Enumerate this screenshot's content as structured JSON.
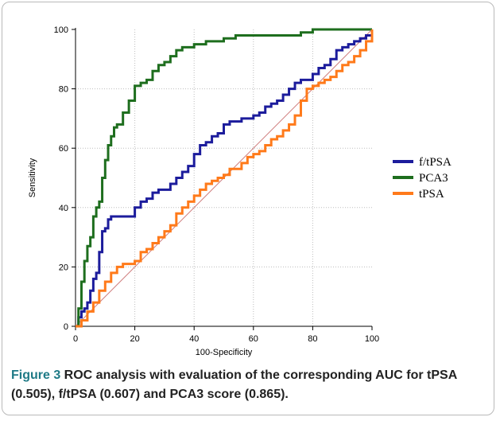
{
  "chart_data": {
    "type": "line",
    "title": "",
    "xlabel": "100-Specificity",
    "ylabel": "Sensitivity",
    "xlim": [
      0,
      100
    ],
    "ylim": [
      0,
      100
    ],
    "xticks": [
      "0",
      "20",
      "40",
      "60",
      "80",
      "100"
    ],
    "yticks": [
      "0",
      "20",
      "40",
      "60",
      "80",
      "100"
    ],
    "grid": true,
    "legend_position": "right",
    "diagonal_reference_line": true,
    "series": [
      {
        "name": "f/tPSA",
        "color": "#1c1c9c",
        "x": [
          0,
          1,
          2,
          3,
          4,
          5,
          6,
          7,
          8,
          9,
          10,
          11,
          12,
          13,
          14,
          15,
          16,
          18,
          20,
          22,
          24,
          26,
          28,
          30,
          32,
          34,
          36,
          38,
          40,
          42,
          44,
          46,
          48,
          50,
          52,
          54,
          56,
          58,
          60,
          62,
          64,
          66,
          68,
          70,
          72,
          74,
          76,
          78,
          80,
          82,
          84,
          86,
          88,
          90,
          92,
          94,
          96,
          98,
          100
        ],
        "y": [
          0,
          3,
          5,
          6,
          8,
          12,
          16,
          18,
          25,
          32,
          33,
          36,
          37,
          37,
          37,
          37,
          37,
          37,
          40,
          42,
          43,
          45,
          46,
          46,
          48,
          50,
          52,
          54,
          58,
          61,
          62,
          64,
          65,
          68,
          69,
          69,
          70,
          70,
          71,
          72,
          74,
          75,
          76,
          78,
          80,
          82,
          83,
          83,
          85,
          87,
          88,
          90,
          93,
          94,
          95,
          96,
          97,
          98,
          100
        ]
      },
      {
        "name": "PCA3",
        "color": "#1e6e1e",
        "x": [
          0,
          1,
          2,
          3,
          4,
          5,
          6,
          7,
          8,
          9,
          10,
          11,
          12,
          13,
          14,
          16,
          18,
          20,
          22,
          24,
          26,
          28,
          30,
          32,
          34,
          36,
          38,
          40,
          42,
          44,
          46,
          48,
          50,
          52,
          54,
          56,
          58,
          60,
          62,
          64,
          66,
          68,
          70,
          72,
          74,
          76,
          78,
          80,
          82,
          84,
          86,
          88,
          90,
          92,
          94,
          96,
          98,
          100
        ],
        "y": [
          0,
          6,
          15,
          22,
          27,
          30,
          37,
          40,
          42,
          50,
          56,
          61,
          64,
          67,
          68,
          72,
          76,
          81,
          82,
          83,
          86,
          88,
          89,
          91,
          93,
          94,
          94,
          95,
          95,
          96,
          96,
          96,
          97,
          97,
          98,
          98,
          98,
          98,
          98,
          98,
          98,
          98,
          98,
          98,
          98,
          99,
          99,
          100,
          100,
          100,
          100,
          100,
          100,
          100,
          100,
          100,
          100,
          100
        ]
      },
      {
        "name": "tPSA",
        "color": "#ff7a1a",
        "x": [
          0,
          2,
          4,
          6,
          8,
          10,
          12,
          14,
          16,
          18,
          20,
          22,
          24,
          26,
          28,
          30,
          32,
          34,
          36,
          38,
          40,
          42,
          44,
          46,
          48,
          50,
          52,
          54,
          56,
          58,
          60,
          62,
          64,
          66,
          68,
          70,
          72,
          74,
          76,
          78,
          80,
          82,
          84,
          86,
          88,
          90,
          92,
          94,
          96,
          98,
          100
        ],
        "y": [
          0,
          2,
          5,
          8,
          12,
          15,
          18,
          20,
          21,
          21,
          22,
          25,
          26,
          28,
          30,
          32,
          34,
          38,
          40,
          42,
          44,
          46,
          48,
          49,
          50,
          51,
          53,
          53,
          55,
          57,
          58,
          59,
          61,
          63,
          64,
          66,
          68,
          71,
          76,
          80,
          81,
          82,
          83,
          84,
          86,
          88,
          89,
          91,
          93,
          96,
          100
        ]
      }
    ]
  },
  "caption": {
    "figure_label": "Figure 3",
    "text": " ROC analysis with evaluation of the corresponding AUC for tPSA (0.505), f/tPSA (0.607) and PCA3 score (0.865)."
  }
}
